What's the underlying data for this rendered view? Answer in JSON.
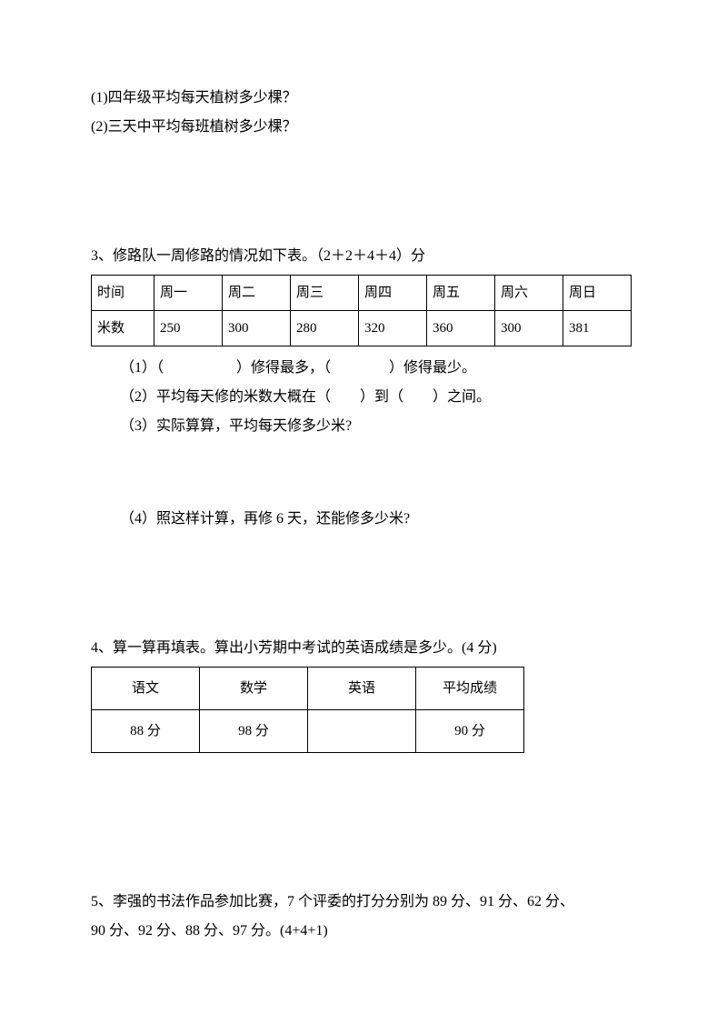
{
  "q2": {
    "sub1": "(1)四年级平均每天植树多少棵？",
    "sub2": "(2)三天中平均每班植树多少棵？"
  },
  "q3": {
    "intro": "3、修路队一周修路的情况如下表。（2＋2＋4＋4）分",
    "table": {
      "header": [
        "时间",
        "周一",
        "周二",
        "周三",
        "周四",
        "周五",
        "周六",
        "周日"
      ],
      "row": [
        "米数",
        "250",
        "300",
        "280",
        "320",
        "360",
        "300",
        "381"
      ]
    },
    "sub1": "（1）（　　　　　）修得最多，（　　　　）修得最少。",
    "sub2": "（2）平均每天修的米数大概在（　　）到（　　）之间。",
    "sub3": "（3）实际算算，平均每天修多少米?",
    "sub4": "（4）照这样计算，再修 6 天，还能修多少米?"
  },
  "q4": {
    "intro": "4、算一算再填表。算出小芳期中考试的英语成绩是多少。(4 分)",
    "table": {
      "header": [
        "语文",
        "数学",
        "英语",
        "平均成绩"
      ],
      "row": [
        "88 分",
        "98 分",
        "",
        "90 分"
      ]
    }
  },
  "q5": {
    "line1": "5、李强的书法作品参加比赛，7 个评委的打分分别为 89 分、91 分、62 分、",
    "line2": "90 分、92 分、88 分、97 分。(4+4+1)"
  }
}
